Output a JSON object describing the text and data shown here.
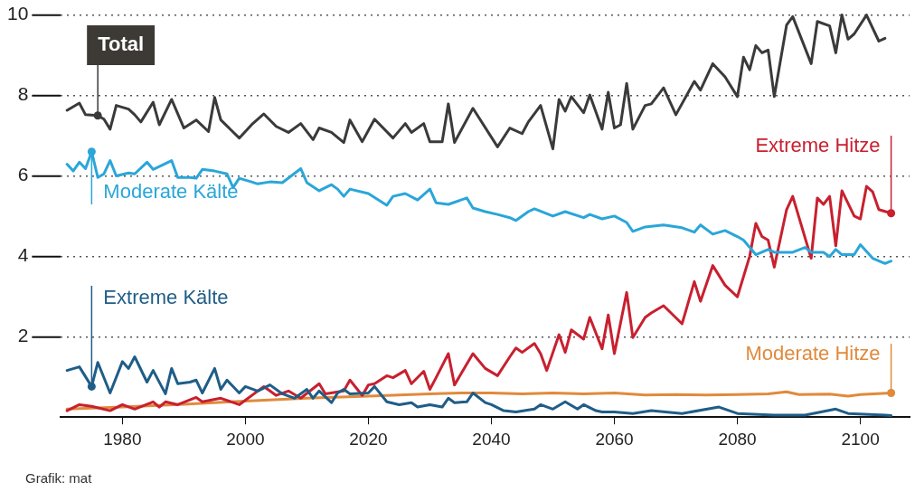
{
  "chart_data": {
    "type": "line",
    "xlim": [
      1970,
      2108
    ],
    "xticks": [
      1980,
      2000,
      2020,
      2040,
      2060,
      2080,
      2100
    ],
    "ylim": [
      0,
      10
    ],
    "yticks": [
      2,
      4,
      6,
      8,
      10
    ],
    "grid": "y",
    "legend": false,
    "annotations": [
      "Grafik: mat"
    ],
    "series": [
      {
        "name": "Total",
        "color": "#3a3a3a",
        "x": [
          1971,
          1973,
          1974,
          1976,
          1977,
          1978,
          1979,
          1981,
          1982,
          1983,
          1985,
          1986,
          1988,
          1990,
          1992,
          1994,
          1995,
          1996,
          1999,
          2001,
          2003,
          2005,
          2007,
          2009,
          2011,
          2012,
          2014,
          2016,
          2017,
          2019,
          2021,
          2024,
          2026,
          2027,
          2029,
          2030,
          2032,
          2033,
          2034,
          2037,
          2041,
          2043,
          2045,
          2046,
          2048,
          2050,
          2051,
          2052,
          2053,
          2055,
          2056,
          2058,
          2059,
          2060,
          2061,
          2062,
          2063,
          2065,
          2066,
          2068,
          2070,
          2073,
          2074,
          2076,
          2078,
          2080,
          2081,
          2082,
          2083,
          2084,
          2085,
          2086,
          2088,
          2089,
          2092,
          2093,
          2095,
          2096,
          2097,
          2098,
          2099,
          2101,
          2103,
          2104
        ],
        "values": [
          7.63,
          7.81,
          7.52,
          7.5,
          7.41,
          7.16,
          7.75,
          7.66,
          7.52,
          7.34,
          7.83,
          7.27,
          7.9,
          7.19,
          7.39,
          7.1,
          7.95,
          7.39,
          6.94,
          7.27,
          7.54,
          7.23,
          7.08,
          7.3,
          6.9,
          7.19,
          7.08,
          6.83,
          7.39,
          6.85,
          7.41,
          6.94,
          7.3,
          7.08,
          7.3,
          6.85,
          6.85,
          7.79,
          6.83,
          7.68,
          6.72,
          7.19,
          7.05,
          7.34,
          7.75,
          6.67,
          7.9,
          7.61,
          7.97,
          7.57,
          8.01,
          7.16,
          8.08,
          7.19,
          7.27,
          8.3,
          7.16,
          7.75,
          7.79,
          8.19,
          7.52,
          8.35,
          8.13,
          8.79,
          8.46,
          7.97,
          8.95,
          8.64,
          9.24,
          9.06,
          9.13,
          7.97,
          9.75,
          9.96,
          8.79,
          9.84,
          9.73,
          9.06,
          10.0,
          9.4,
          9.53,
          10.0,
          9.35,
          9.42
        ]
      },
      {
        "name": "Moderate Kälte",
        "color": "#2aa6d9",
        "x": [
          1971,
          1972,
          1973,
          1974,
          1975,
          1976,
          1977,
          1978,
          1979,
          1981,
          1982,
          1984,
          1985,
          1986,
          1988,
          1989,
          1991,
          1992,
          1993,
          1995,
          1997,
          1998,
          1999,
          2001,
          2002,
          2004,
          2006,
          2009,
          2010,
          2012,
          2014,
          2015,
          2016,
          2017,
          2020,
          2023,
          2024,
          2026,
          2028,
          2030,
          2031,
          2033,
          2036,
          2037,
          2039,
          2041,
          2043,
          2044,
          2046,
          2047,
          2050,
          2052,
          2055,
          2056,
          2058,
          2060,
          2062,
          2063,
          2065,
          2068,
          2071,
          2073,
          2074,
          2076,
          2078,
          2080,
          2081,
          2083,
          2085,
          2086,
          2089,
          2091,
          2092,
          2094,
          2095,
          2096,
          2097,
          2099,
          2100,
          2102,
          2104,
          2105
        ],
        "values": [
          6.29,
          6.12,
          6.34,
          6.18,
          6.6,
          5.96,
          6.05,
          6.38,
          6.0,
          6.07,
          6.05,
          6.34,
          6.16,
          6.23,
          6.38,
          5.96,
          5.96,
          5.94,
          6.16,
          6.12,
          6.05,
          5.71,
          5.94,
          5.85,
          5.8,
          5.85,
          5.83,
          6.18,
          5.83,
          5.63,
          5.78,
          5.67,
          5.49,
          5.67,
          5.56,
          5.27,
          5.49,
          5.56,
          5.4,
          5.67,
          5.33,
          5.29,
          5.45,
          5.2,
          5.11,
          5.04,
          4.96,
          4.89,
          5.11,
          5.18,
          5.0,
          5.11,
          4.96,
          5.04,
          4.93,
          5.0,
          4.84,
          4.62,
          4.73,
          4.78,
          4.71,
          4.6,
          4.78,
          4.55,
          4.64,
          4.49,
          4.4,
          4.04,
          4.17,
          4.1,
          4.1,
          4.22,
          4.1,
          4.1,
          3.99,
          4.17,
          4.04,
          4.04,
          4.29,
          3.95,
          3.82,
          3.88
        ]
      },
      {
        "name": "Extreme Kälte",
        "color": "#1f5d88",
        "x": [
          1971,
          1973,
          1975,
          1976,
          1978,
          1980,
          1981,
          1982,
          1984,
          1985,
          1987,
          1988,
          1989,
          1991,
          1992,
          1993,
          1995,
          1996,
          1997,
          1999,
          2000,
          2002,
          2004,
          2006,
          2008,
          2010,
          2011,
          2012,
          2014,
          2015,
          2016,
          2017,
          2020,
          2021,
          2023,
          2025,
          2027,
          2028,
          2030,
          2032,
          2033,
          2034,
          2036,
          2037,
          2039,
          2040,
          2042,
          2044,
          2047,
          2048,
          2050,
          2052,
          2054,
          2055,
          2057,
          2058,
          2060,
          2063,
          2066,
          2071,
          2077,
          2080,
          2086,
          2091,
          2096,
          2098,
          2104,
          2105
        ],
        "values": [
          1.16,
          1.25,
          0.76,
          1.36,
          0.6,
          1.38,
          1.21,
          1.5,
          0.87,
          1.16,
          0.58,
          1.21,
          0.83,
          0.87,
          0.92,
          0.6,
          1.21,
          0.69,
          0.92,
          0.6,
          0.76,
          0.65,
          0.8,
          0.58,
          0.47,
          0.69,
          0.47,
          0.65,
          0.36,
          0.6,
          0.69,
          0.58,
          0.6,
          0.76,
          0.38,
          0.31,
          0.36,
          0.25,
          0.31,
          0.25,
          0.47,
          0.36,
          0.38,
          0.6,
          0.36,
          0.31,
          0.16,
          0.13,
          0.2,
          0.31,
          0.2,
          0.38,
          0.2,
          0.31,
          0.16,
          0.13,
          0.13,
          0.09,
          0.16,
          0.09,
          0.25,
          0.09,
          0.05,
          0.05,
          0.2,
          0.09,
          0.05,
          0.04
        ]
      },
      {
        "name": "Extreme Hitze",
        "color": "#c8202f",
        "x": [
          1971,
          1973,
          1975,
          1978,
          1980,
          1982,
          1985,
          1986,
          1987,
          1989,
          1992,
          1993,
          1996,
          1999,
          2003,
          2004,
          2005,
          2007,
          2009,
          2012,
          2013,
          2016,
          2017,
          2019,
          2020,
          2021,
          2023,
          2024,
          2026,
          2027,
          2029,
          2030,
          2031,
          2033,
          2034,
          2037,
          2039,
          2041,
          2043,
          2044,
          2045,
          2047,
          2048,
          2049,
          2051,
          2052,
          2053,
          2055,
          2056,
          2058,
          2059,
          2060,
          2062,
          2063,
          2065,
          2066,
          2068,
          2071,
          2073,
          2074,
          2076,
          2078,
          2080,
          2082,
          2083,
          2084,
          2085,
          2086,
          2088,
          2089,
          2092,
          2093,
          2094,
          2095,
          2096,
          2097,
          2099,
          2100,
          2101,
          2102,
          2103,
          2105
        ],
        "values": [
          0.16,
          0.31,
          0.27,
          0.16,
          0.31,
          0.2,
          0.38,
          0.25,
          0.38,
          0.31,
          0.49,
          0.38,
          0.47,
          0.31,
          0.76,
          0.65,
          0.54,
          0.65,
          0.47,
          0.83,
          0.58,
          0.65,
          0.92,
          0.54,
          0.8,
          0.83,
          1.03,
          0.98,
          1.16,
          0.83,
          1.14,
          0.69,
          0.98,
          1.58,
          0.8,
          1.58,
          1.21,
          1.03,
          1.5,
          1.72,
          1.61,
          1.83,
          1.58,
          1.16,
          2.05,
          1.61,
          2.17,
          1.94,
          2.48,
          1.7,
          2.54,
          1.58,
          3.1,
          1.98,
          2.48,
          2.59,
          2.77,
          2.32,
          3.37,
          2.88,
          3.77,
          3.28,
          2.99,
          4.0,
          4.82,
          4.49,
          4.4,
          3.73,
          5.16,
          5.49,
          3.95,
          5.45,
          5.29,
          5.49,
          4.26,
          5.63,
          5.0,
          4.93,
          5.74,
          5.6,
          5.16,
          5.07
        ]
      },
      {
        "name": "Moderate Hitze",
        "color": "#e08a3c",
        "x": [
          1971,
          1980,
          1990,
          2000,
          2010,
          2020,
          2025,
          2030,
          2035,
          2040,
          2045,
          2050,
          2055,
          2060,
          2065,
          2070,
          2075,
          2080,
          2085,
          2088,
          2090,
          2095,
          2098,
          2100,
          2105
        ],
        "values": [
          0.2,
          0.25,
          0.32,
          0.4,
          0.47,
          0.52,
          0.55,
          0.58,
          0.6,
          0.6,
          0.58,
          0.6,
          0.58,
          0.6,
          0.55,
          0.56,
          0.55,
          0.56,
          0.58,
          0.63,
          0.56,
          0.57,
          0.52,
          0.56,
          0.6
        ]
      }
    ]
  }
}
